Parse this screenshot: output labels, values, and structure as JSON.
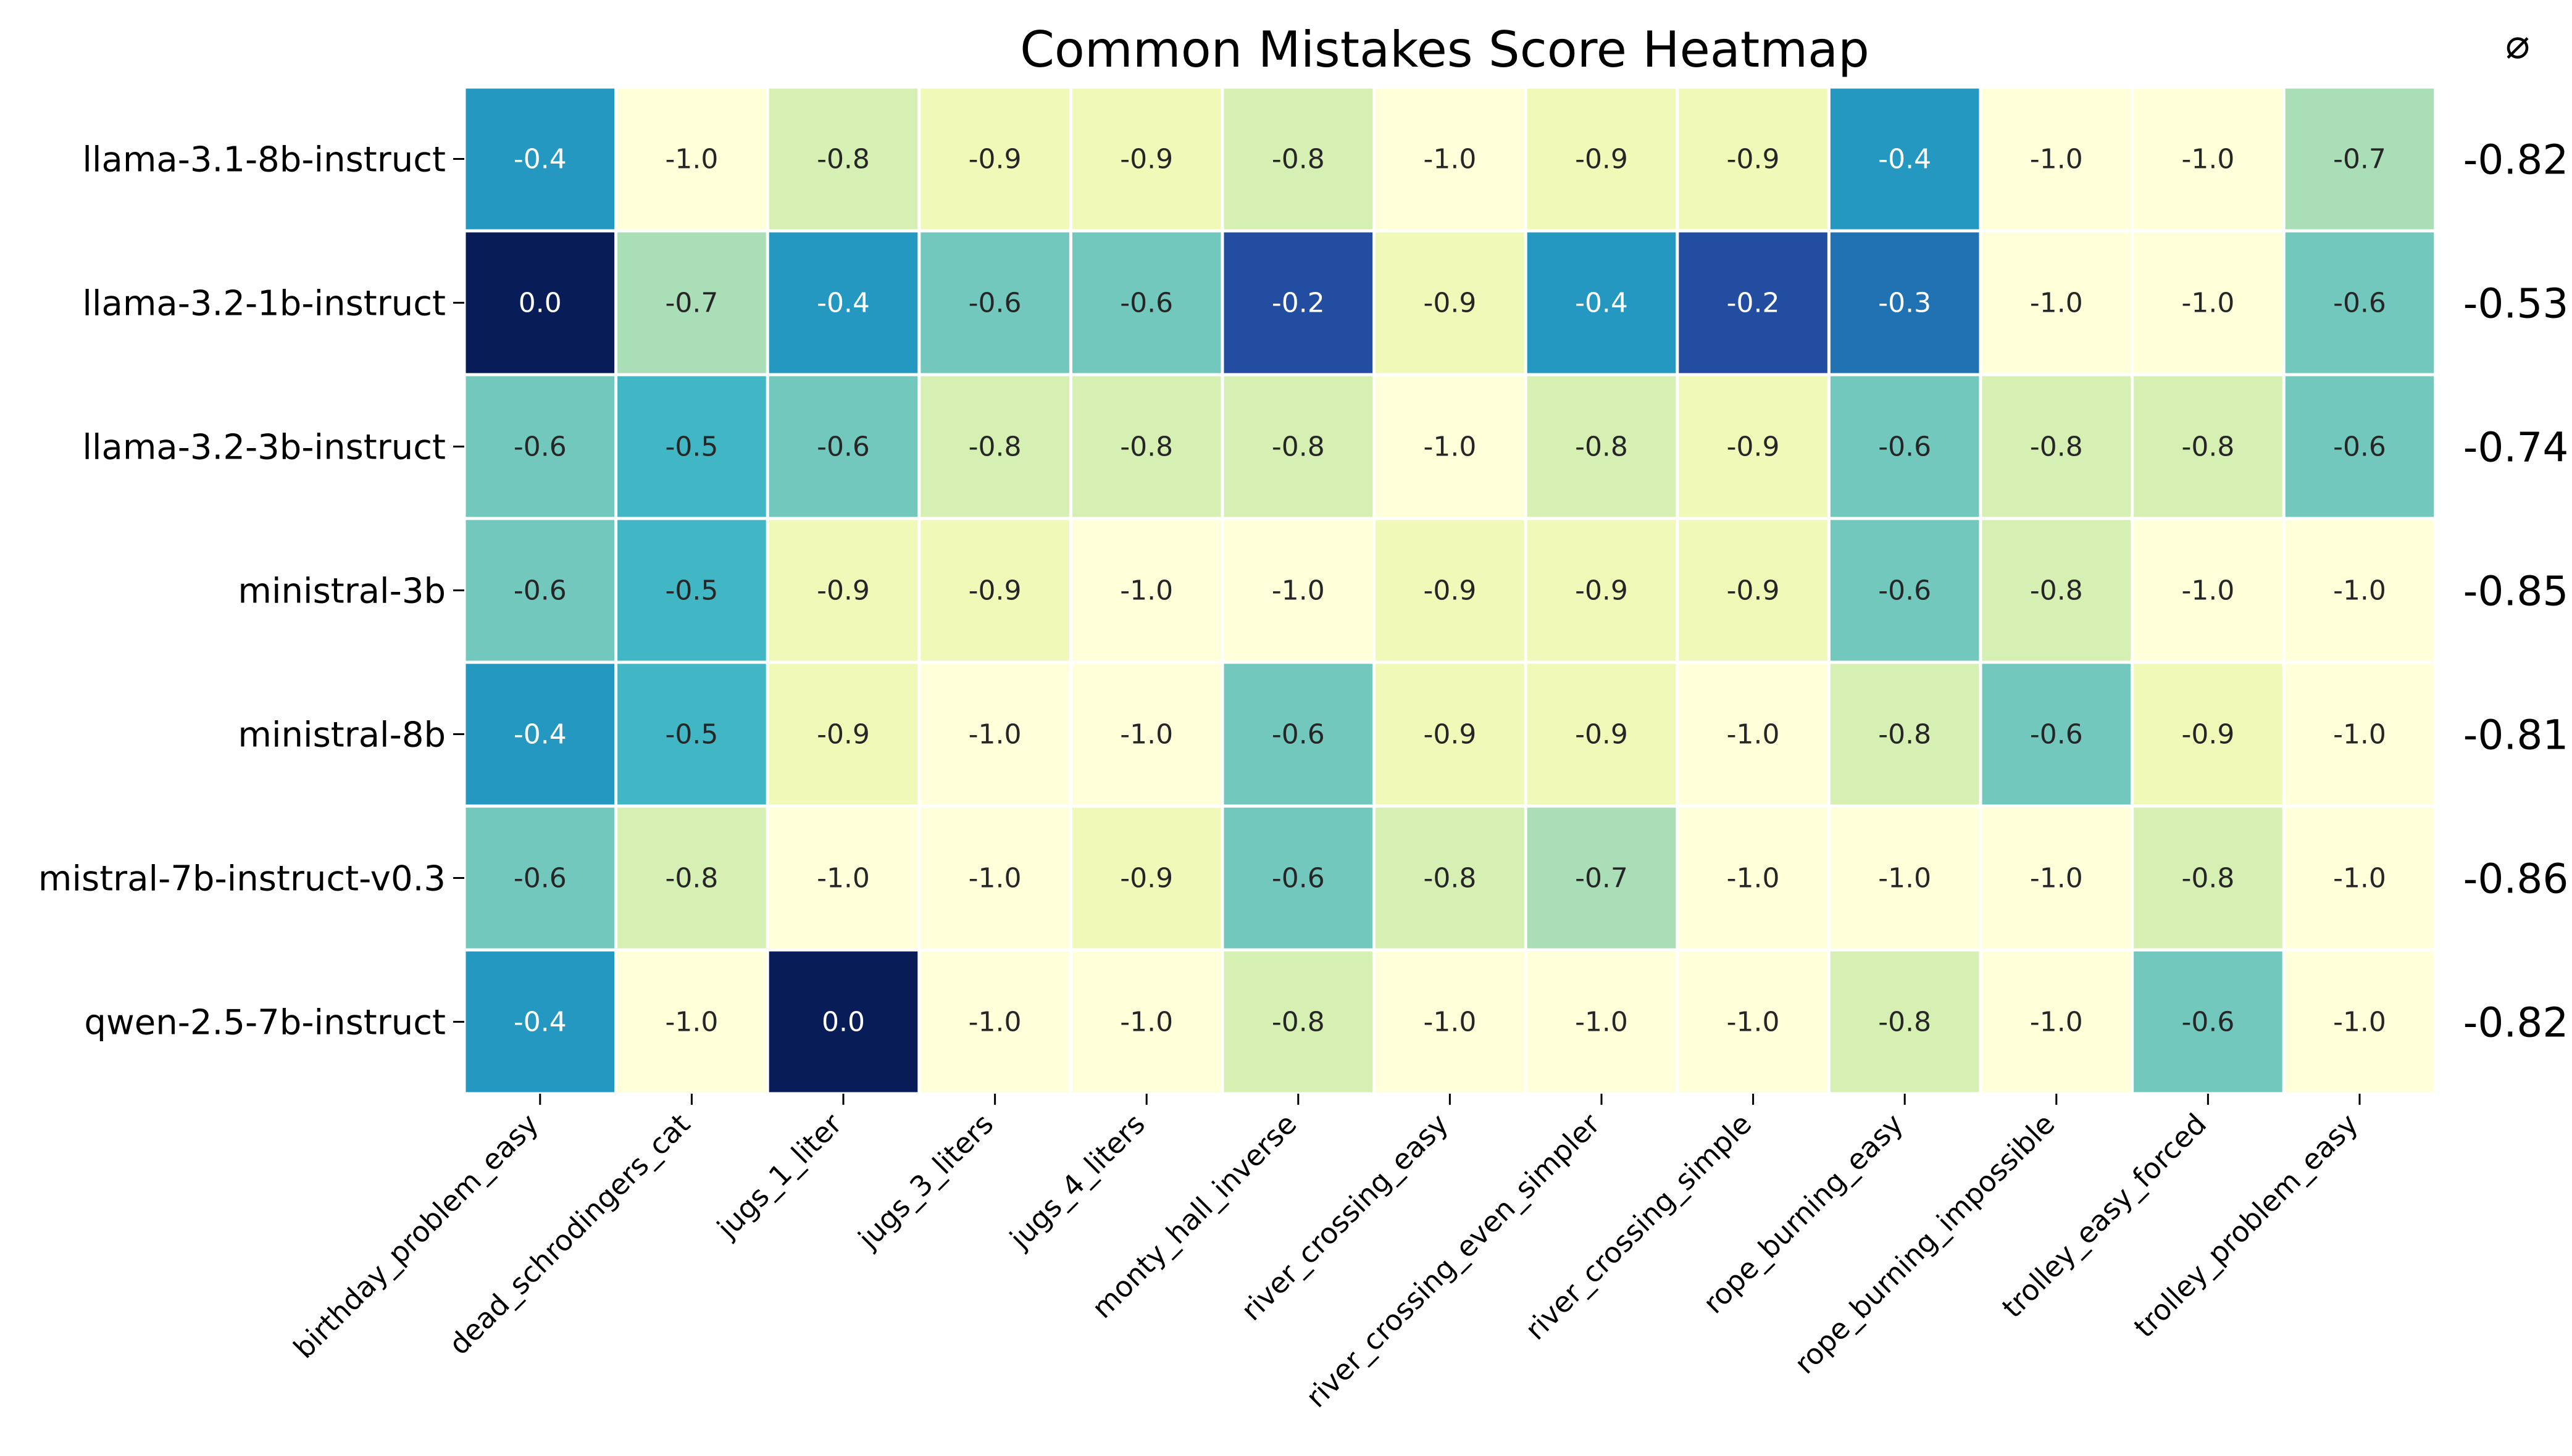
{
  "chart_data": {
    "type": "heatmap",
    "title": "Common Mistakes Score Heatmap",
    "avg_header": "⌀",
    "rows": [
      "llama-3.1-8b-instruct",
      "llama-3.2-1b-instruct",
      "llama-3.2-3b-instruct",
      "ministral-3b",
      "ministral-8b",
      "mistral-7b-instruct-v0.3",
      "qwen-2.5-7b-instruct"
    ],
    "columns": [
      "birthday_problem_easy",
      "dead_schrodingers_cat",
      "jugs_1_liter",
      "jugs_3_liters",
      "jugs_4_liters",
      "monty_hall_inverse",
      "river_crossing_easy",
      "river_crossing_even_simpler",
      "river_crossing_simple",
      "rope_burning_easy",
      "rope_burning_impossible",
      "trolley_easy_forced",
      "trolley_problem_easy"
    ],
    "values": [
      [
        -0.4,
        -1.0,
        -0.8,
        -0.9,
        -0.9,
        -0.8,
        -1.0,
        -0.9,
        -0.9,
        -0.4,
        -1.0,
        -1.0,
        -0.7
      ],
      [
        0.0,
        -0.7,
        -0.4,
        -0.6,
        -0.6,
        -0.2,
        -0.9,
        -0.4,
        -0.2,
        -0.3,
        -1.0,
        -1.0,
        -0.6
      ],
      [
        -0.6,
        -0.5,
        -0.6,
        -0.8,
        -0.8,
        -0.8,
        -1.0,
        -0.8,
        -0.9,
        -0.6,
        -0.8,
        -0.8,
        -0.6
      ],
      [
        -0.6,
        -0.5,
        -0.9,
        -0.9,
        -1.0,
        -1.0,
        -0.9,
        -0.9,
        -0.9,
        -0.6,
        -0.8,
        -1.0,
        -1.0
      ],
      [
        -0.4,
        -0.5,
        -0.9,
        -1.0,
        -1.0,
        -0.6,
        -0.9,
        -0.9,
        -1.0,
        -0.8,
        -0.6,
        -0.9,
        -1.0
      ],
      [
        -0.6,
        -0.8,
        -1.0,
        -1.0,
        -0.9,
        -0.6,
        -0.8,
        -0.7,
        -1.0,
        -1.0,
        -1.0,
        -0.8,
        -1.0
      ],
      [
        -0.4,
        -1.0,
        0.0,
        -1.0,
        -1.0,
        -0.8,
        -1.0,
        -1.0,
        -1.0,
        -0.8,
        -1.0,
        -0.6,
        -1.0
      ]
    ],
    "row_averages": [
      "-0.82",
      "-0.53",
      "-0.74",
      "-0.85",
      "-0.81",
      "-0.86",
      "-0.82"
    ],
    "value_range": [
      -1.0,
      0.0
    ],
    "colormap": "YlGnBu",
    "colormap_stops": [
      "#ffffd9",
      "#edf8b1",
      "#c7e9b4",
      "#7fcdbb",
      "#41b6c4",
      "#1d91c0",
      "#225ea8",
      "#253494",
      "#081d58"
    ],
    "dark_text_color": "#262626",
    "light_text_color": "#ffffff"
  }
}
